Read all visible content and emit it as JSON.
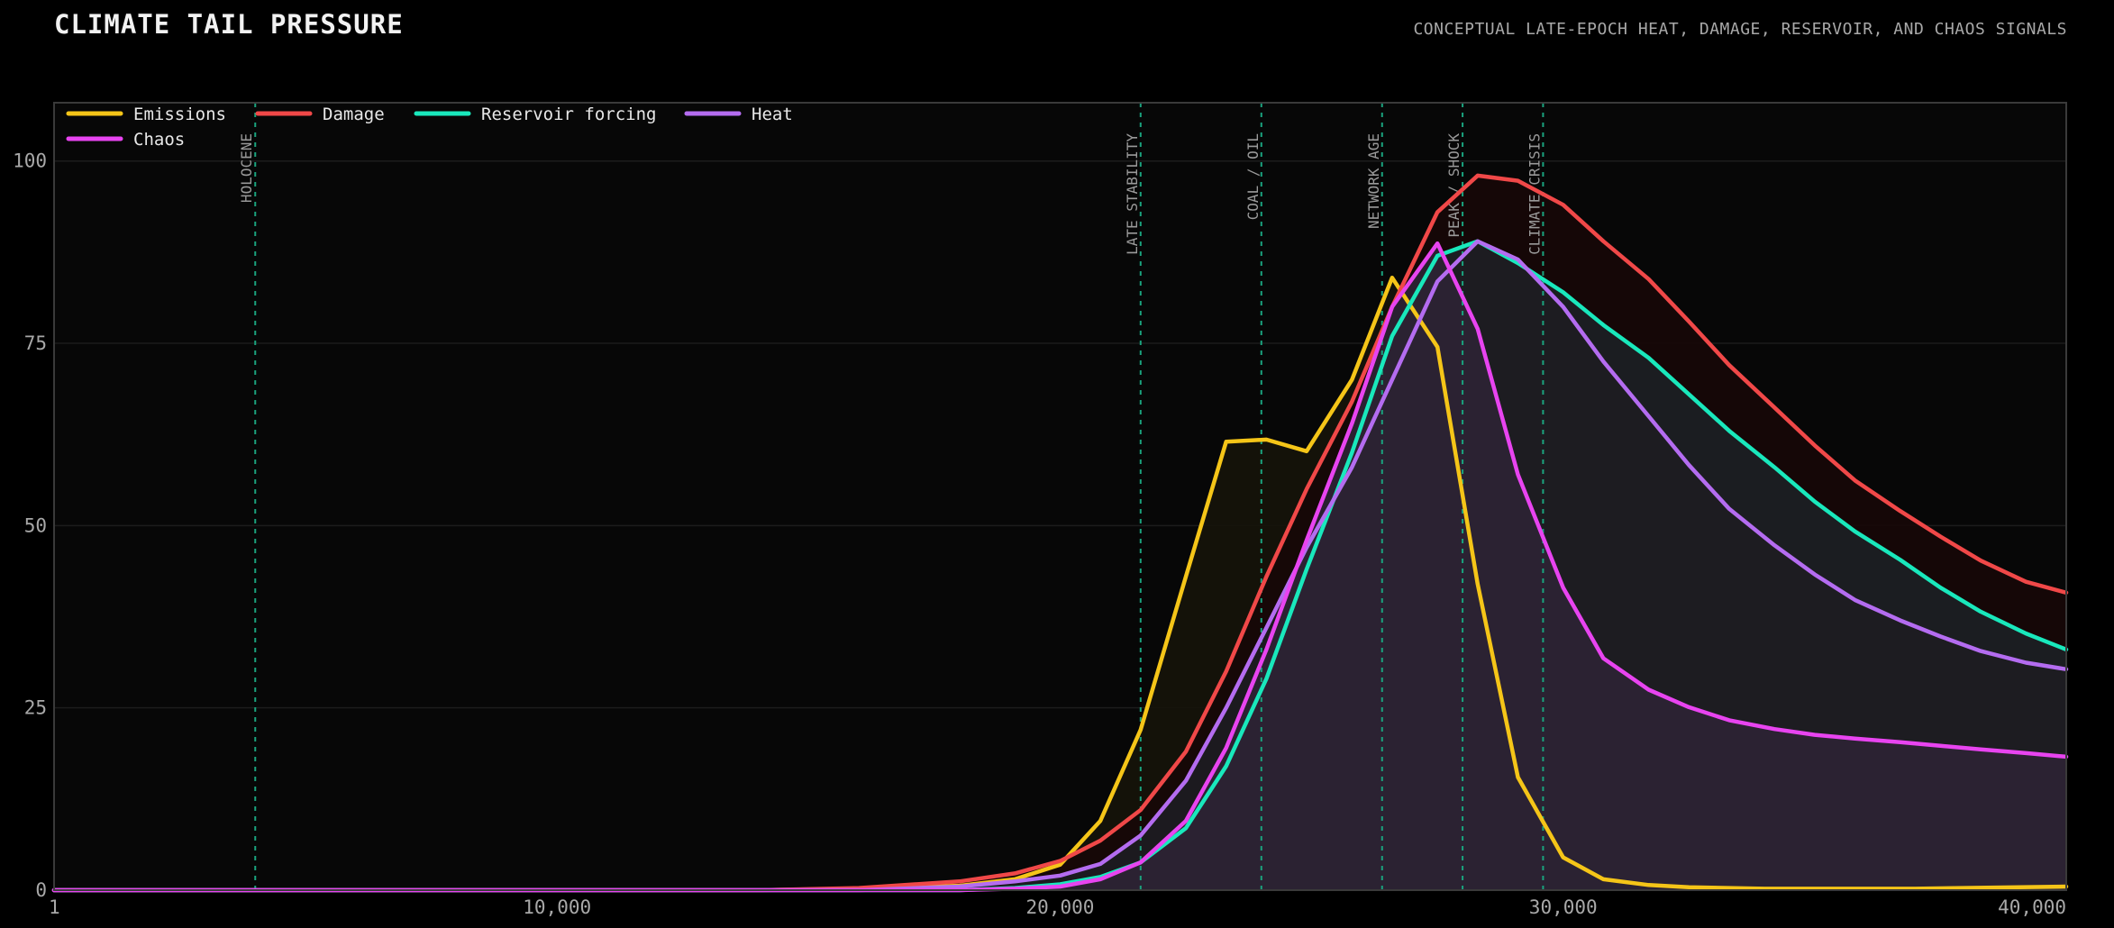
{
  "header": {
    "title": "CLIMATE TAIL PRESSURE",
    "subtitle": "CONCEPTUAL LATE-EPOCH HEAT, DAMAGE, RESERVOIR, AND CHAOS SIGNALS"
  },
  "chart_data": {
    "type": "area",
    "xlim": [
      1,
      40000
    ],
    "ylim": [
      0,
      108
    ],
    "x_ticks": [
      {
        "value": 1,
        "label": "1"
      },
      {
        "value": 10000,
        "label": "10,000"
      },
      {
        "value": 20000,
        "label": "20,000"
      },
      {
        "value": 30000,
        "label": "30,000"
      },
      {
        "value": 40000,
        "label": "40,000"
      }
    ],
    "y_ticks": [
      {
        "value": 0,
        "label": "0"
      },
      {
        "value": 25,
        "label": "25"
      },
      {
        "value": 50,
        "label": "50"
      },
      {
        "value": 75,
        "label": "75"
      },
      {
        "value": 100,
        "label": "100"
      }
    ],
    "grid": true,
    "legend_position": "top-left",
    "eras": [
      {
        "x": 4000,
        "label": "HOLOCENE"
      },
      {
        "x": 21600,
        "label": "LATE STABILITY"
      },
      {
        "x": 24000,
        "label": "COAL / OIL"
      },
      {
        "x": 26400,
        "label": "NETWORK AGE"
      },
      {
        "x": 28000,
        "label": "PEAK / SHOCK"
      },
      {
        "x": 29600,
        "label": "CLIMATE CRISIS"
      }
    ],
    "series": [
      {
        "name": "Emissions",
        "color": "#f5c518",
        "fill": "#16140a",
        "points": [
          [
            1,
            0
          ],
          [
            14000,
            0
          ],
          [
            16000,
            0.2
          ],
          [
            18000,
            0.6
          ],
          [
            19100,
            1.5
          ],
          [
            20000,
            3.5
          ],
          [
            20800,
            9.5
          ],
          [
            21600,
            22
          ],
          [
            22500,
            43
          ],
          [
            23300,
            61.5
          ],
          [
            24100,
            61.8
          ],
          [
            24900,
            60.2
          ],
          [
            25800,
            70
          ],
          [
            26600,
            84
          ],
          [
            27500,
            74.5
          ],
          [
            28300,
            42
          ],
          [
            29100,
            15.5
          ],
          [
            30000,
            4.5
          ],
          [
            30800,
            1.5
          ],
          [
            31700,
            0.7
          ],
          [
            32500,
            0.4
          ],
          [
            34000,
            0.2
          ],
          [
            37000,
            0.2
          ],
          [
            40000,
            0.5
          ]
        ]
      },
      {
        "name": "Damage",
        "color": "#f04848",
        "fill": "#170808",
        "points": [
          [
            1,
            0
          ],
          [
            14000,
            0
          ],
          [
            16000,
            0.3
          ],
          [
            18000,
            1.2
          ],
          [
            19100,
            2.3
          ],
          [
            20000,
            4
          ],
          [
            20800,
            6.8
          ],
          [
            21600,
            11
          ],
          [
            22500,
            19
          ],
          [
            23300,
            30
          ],
          [
            24100,
            43
          ],
          [
            24900,
            55
          ],
          [
            25800,
            67
          ],
          [
            26600,
            80
          ],
          [
            27500,
            93
          ],
          [
            28300,
            98
          ],
          [
            29100,
            97.3
          ],
          [
            30000,
            94
          ],
          [
            30800,
            89
          ],
          [
            31700,
            83.8
          ],
          [
            32500,
            78
          ],
          [
            33300,
            72
          ],
          [
            34200,
            66.2
          ],
          [
            35000,
            61
          ],
          [
            35800,
            56.2
          ],
          [
            36700,
            52
          ],
          [
            37500,
            48.5
          ],
          [
            38300,
            45.2
          ],
          [
            39200,
            42.3
          ],
          [
            40000,
            40.8
          ]
        ]
      },
      {
        "name": "Reservoir forcing",
        "color": "#19e8bc",
        "fill": "#1c2024",
        "points": [
          [
            1,
            0
          ],
          [
            18000,
            0
          ],
          [
            19100,
            0.3
          ],
          [
            20000,
            0.8
          ],
          [
            20800,
            1.8
          ],
          [
            21600,
            3.8
          ],
          [
            22500,
            8.5
          ],
          [
            23300,
            17
          ],
          [
            24100,
            29
          ],
          [
            24900,
            44
          ],
          [
            25800,
            60
          ],
          [
            26600,
            76
          ],
          [
            27500,
            87
          ],
          [
            28300,
            89
          ],
          [
            29100,
            86
          ],
          [
            30000,
            82
          ],
          [
            30800,
            77.5
          ],
          [
            31700,
            73
          ],
          [
            32500,
            68
          ],
          [
            33300,
            63
          ],
          [
            34200,
            58
          ],
          [
            35000,
            53.3
          ],
          [
            35800,
            49.2
          ],
          [
            36700,
            45.3
          ],
          [
            37500,
            41.5
          ],
          [
            38300,
            38.2
          ],
          [
            39200,
            35.2
          ],
          [
            40000,
            33
          ]
        ]
      },
      {
        "name": "Heat",
        "color": "#b46cf0",
        "fill": "#1d1c22",
        "points": [
          [
            1,
            0
          ],
          [
            16000,
            0
          ],
          [
            18000,
            0.5
          ],
          [
            19100,
            1.2
          ],
          [
            20000,
            2
          ],
          [
            20800,
            3.6
          ],
          [
            21600,
            7.5
          ],
          [
            22500,
            15
          ],
          [
            23300,
            25
          ],
          [
            24100,
            36
          ],
          [
            24900,
            47
          ],
          [
            25800,
            58
          ],
          [
            26600,
            70
          ],
          [
            27500,
            83.5
          ],
          [
            28300,
            89
          ],
          [
            29100,
            86.5
          ],
          [
            30000,
            80
          ],
          [
            30800,
            72.5
          ],
          [
            31700,
            65
          ],
          [
            32500,
            58.3
          ],
          [
            33300,
            52.3
          ],
          [
            34200,
            47.3
          ],
          [
            35000,
            43.3
          ],
          [
            35800,
            39.8
          ],
          [
            36700,
            37
          ],
          [
            37500,
            34.8
          ],
          [
            38300,
            32.8
          ],
          [
            39200,
            31.2
          ],
          [
            40000,
            30.3
          ]
        ]
      },
      {
        "name": "Chaos",
        "color": "#e844f0",
        "fill": "#2c2334",
        "points": [
          [
            1,
            0
          ],
          [
            18000,
            0
          ],
          [
            19100,
            0.2
          ],
          [
            20000,
            0.5
          ],
          [
            20800,
            1.5
          ],
          [
            21600,
            3.8
          ],
          [
            22500,
            9.5
          ],
          [
            23300,
            19.5
          ],
          [
            24100,
            33
          ],
          [
            24900,
            48
          ],
          [
            25800,
            64
          ],
          [
            26600,
            80
          ],
          [
            27500,
            88.7
          ],
          [
            28300,
            77
          ],
          [
            29100,
            57
          ],
          [
            30000,
            41.5
          ],
          [
            30800,
            31.8
          ],
          [
            31700,
            27.5
          ],
          [
            32500,
            25.1
          ],
          [
            33300,
            23.3
          ],
          [
            34200,
            22.1
          ],
          [
            35000,
            21.3
          ],
          [
            35800,
            20.8
          ],
          [
            36700,
            20.3
          ],
          [
            37500,
            19.8
          ],
          [
            38300,
            19.3
          ],
          [
            39200,
            18.8
          ],
          [
            40000,
            18.3
          ]
        ]
      }
    ]
  }
}
